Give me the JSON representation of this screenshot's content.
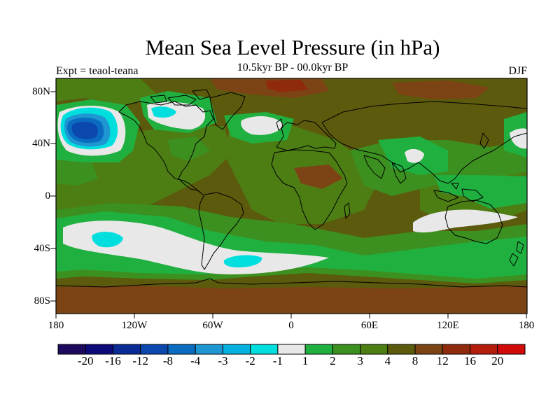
{
  "title": "Mean Sea Level Pressure (in hPa)",
  "subtitle": "10.5kyr BP - 00.0kyr BP",
  "experiment": "Expt = teaol-teana",
  "season": "DJF",
  "map": {
    "lat_labels": [
      "80N",
      "40N",
      "0",
      "40S",
      "80S"
    ],
    "lon_labels": [
      "180",
      "120W",
      "60W",
      "0",
      "60E",
      "120E",
      "180"
    ]
  },
  "colorbar": {
    "labels": [
      "-20",
      "-16",
      "-12",
      "-8",
      "-4",
      "-3",
      "-2",
      "-1",
      "1",
      "2",
      "3",
      "4",
      "8",
      "12",
      "16",
      "20"
    ],
    "colors": [
      "#1d0a5e",
      "#0c0a7a",
      "#0a2a96",
      "#0a48ae",
      "#0a6cc0",
      "#1e96d2",
      "#04b2e0",
      "#00dede",
      "#e8e8e8",
      "#20b040",
      "#3c9020",
      "#4c7e14",
      "#5c5a0c",
      "#7c4414",
      "#902a0c",
      "#b41c0c",
      "#d20a0a"
    ]
  },
  "palette": {
    "base_brown": "#5c5a0c",
    "mid_green": "#4c7e14",
    "green": "#3c9020",
    "bright_green": "#20b040",
    "near_zero": "#e8e8e8",
    "cyan": "#00dede",
    "light_blue": "#1e96d2",
    "blue": "#0a6cc0",
    "dark_blue": "#0a48ae",
    "dark_brown": "#7c4414",
    "red_brown": "#902a0c"
  }
}
